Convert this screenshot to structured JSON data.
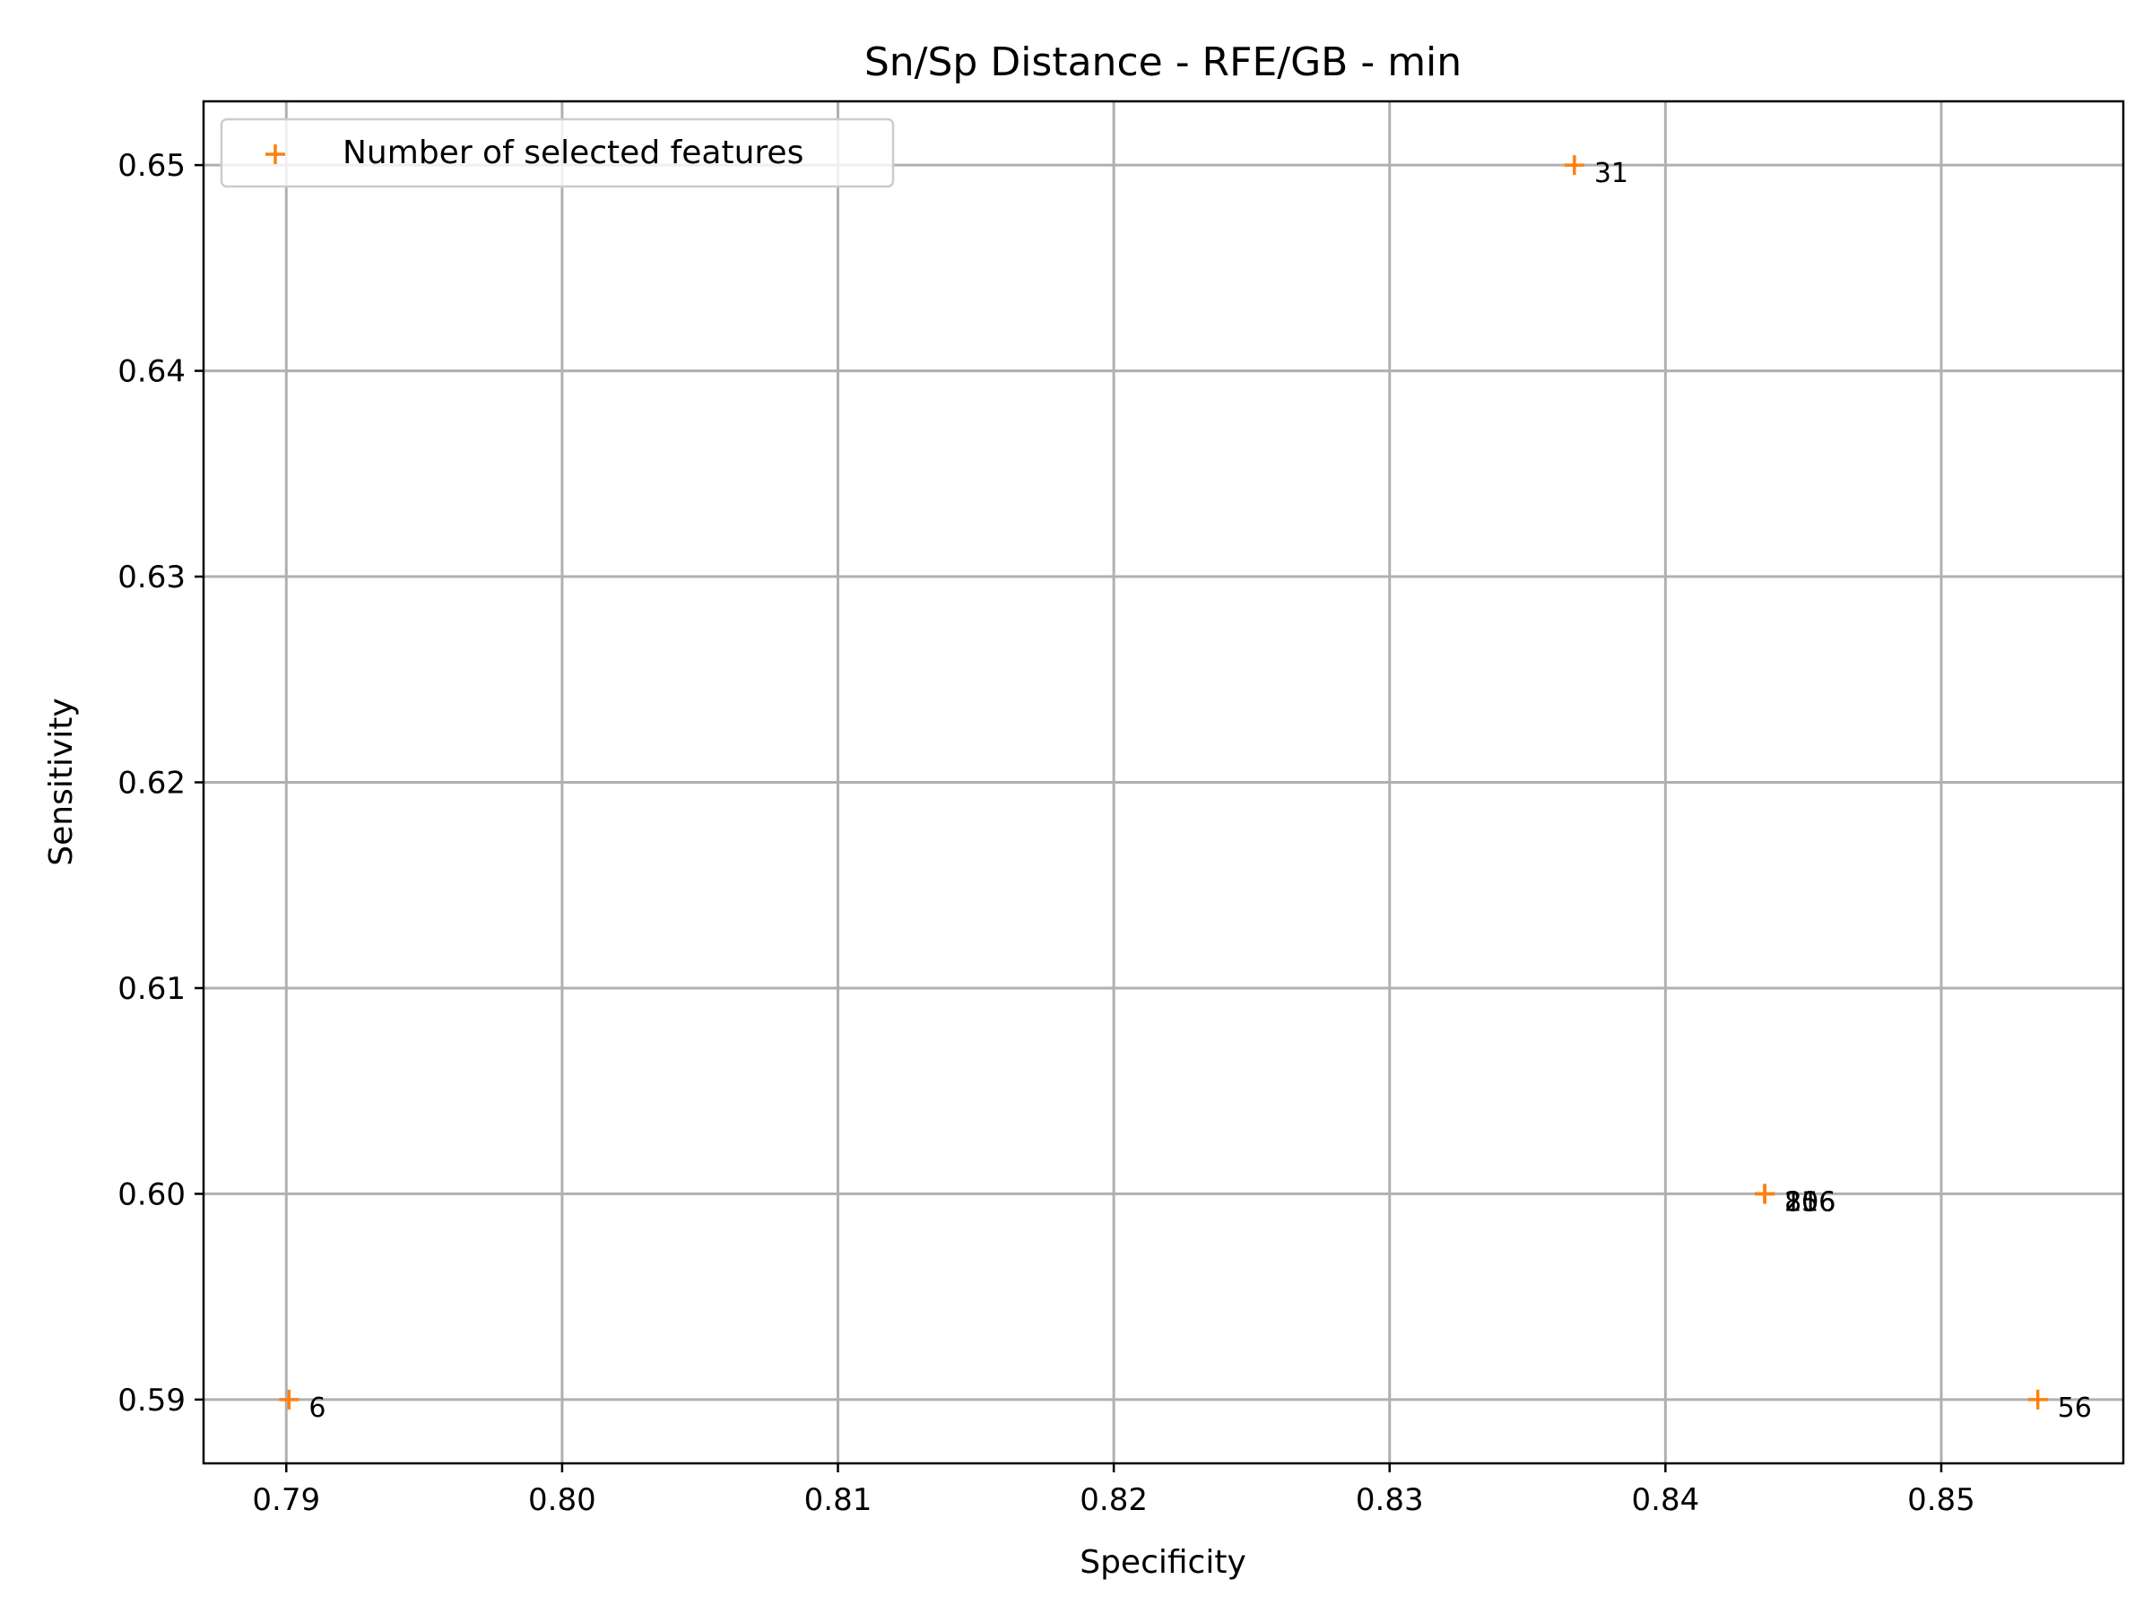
{
  "chart_data": {
    "type": "scatter",
    "title": "Sn/Sp Distance - RFE/GB - min",
    "xlabel": "Specificity",
    "ylabel": "Sensitivity",
    "xlim": [
      0.787,
      0.8566
    ],
    "ylim": [
      0.5869,
      0.6531
    ],
    "xticks": [
      0.79,
      0.8,
      0.81,
      0.82,
      0.83,
      0.84,
      0.85
    ],
    "xtick_labels": [
      "0.79",
      "0.80",
      "0.81",
      "0.82",
      "0.83",
      "0.84",
      "0.85"
    ],
    "yticks": [
      0.59,
      0.6,
      0.61,
      0.62,
      0.63,
      0.64,
      0.65
    ],
    "ytick_labels": [
      "0.59",
      "0.60",
      "0.61",
      "0.62",
      "0.63",
      "0.64",
      "0.65"
    ],
    "grid": true,
    "legend_position": "top-left",
    "marker": "plus",
    "color": "#ff7f0e",
    "series": [
      {
        "name": "Number of selected features",
        "points": [
          {
            "x": 0.7901,
            "y": 0.59,
            "label": "6"
          },
          {
            "x": 0.8367,
            "y": 0.65,
            "label": "31"
          },
          {
            "x": 0.8436,
            "y": 0.6,
            "label": "106"
          },
          {
            "x": 0.8436,
            "y": 0.6,
            "label": "256"
          },
          {
            "x": 0.8436,
            "y": 0.6,
            "label": "206"
          },
          {
            "x": 0.8436,
            "y": 0.6,
            "label": "81"
          },
          {
            "x": 0.8535,
            "y": 0.59,
            "label": "56"
          }
        ]
      }
    ]
  }
}
